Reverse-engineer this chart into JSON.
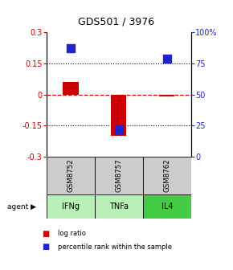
{
  "title": "GDS501 / 3976",
  "samples": [
    "GSM8752",
    "GSM8757",
    "GSM8762"
  ],
  "agents": [
    "IFNg",
    "TNFa",
    "IL4"
  ],
  "log_ratios": [
    0.06,
    -0.2,
    -0.01
  ],
  "percentile_ranks": [
    87,
    22,
    79
  ],
  "ylim_left": [
    -0.3,
    0.3
  ],
  "ylim_right": [
    0,
    100
  ],
  "left_yticks": [
    -0.3,
    -0.15,
    0,
    0.15,
    0.3
  ],
  "right_yticks": [
    0,
    25,
    50,
    75,
    100
  ],
  "right_yticklabels": [
    "0",
    "25",
    "50",
    "75",
    "100%"
  ],
  "hlines_dotted": [
    -0.15,
    0.15
  ],
  "hline_dashed": 0,
  "bar_color": "#cc0000",
  "dot_color": "#2222cc",
  "bar_width": 0.32,
  "dot_size": 45,
  "sample_row_color": "#cccccc",
  "agent_colors": [
    "#b8f0b8",
    "#b8f0b8",
    "#44cc44"
  ],
  "legend_log_color": "#cc0000",
  "legend_dot_color": "#2222cc",
  "title_fontsize": 9,
  "tick_fontsize": 7,
  "label_fontsize": 6.5
}
